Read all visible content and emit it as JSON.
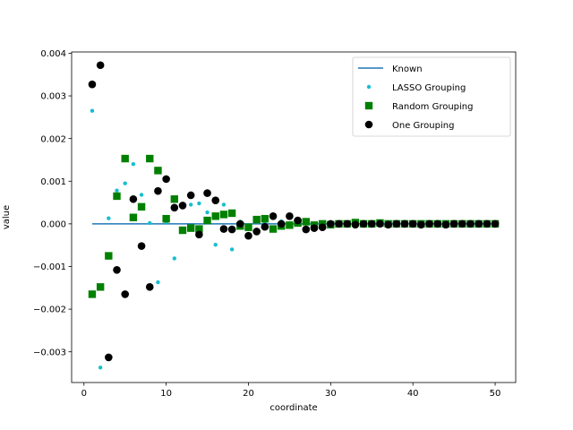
{
  "chart_data": {
    "type": "scatter",
    "title": "",
    "xlabel": "coordinate",
    "ylabel": "value",
    "xlim": [
      -1.5,
      52.5
    ],
    "ylim": [
      -0.00372,
      0.00403
    ],
    "xticks": [
      0,
      10,
      20,
      30,
      40,
      50
    ],
    "yticks": [
      -0.003,
      -0.002,
      -0.001,
      0.0,
      0.001,
      0.002,
      0.003,
      0.004
    ],
    "ytick_labels": [
      "−0.003",
      "−0.002",
      "−0.001",
      "0.000",
      "0.001",
      "0.002",
      "0.003",
      "0.004"
    ],
    "grid": false,
    "legend_position": "upper right",
    "series": [
      {
        "name": "Known",
        "marker": "line",
        "color": "#1f77b4",
        "x": [
          1,
          50
        ],
        "y": [
          0,
          0
        ]
      },
      {
        "name": "LASSO Grouping",
        "marker": "small-dot",
        "color": "#17becf",
        "x": [
          1,
          2,
          3,
          4,
          5,
          6,
          7,
          8,
          9,
          10,
          11,
          12,
          13,
          14,
          15,
          16,
          17,
          18,
          19,
          20,
          21,
          22,
          23,
          24,
          25,
          26,
          27,
          28,
          29,
          30,
          31,
          32,
          33,
          34,
          35,
          36,
          37,
          38,
          39,
          40,
          41,
          42,
          43,
          44,
          45,
          46,
          47,
          48,
          49,
          50
        ],
        "y": [
          0.00265,
          -0.00337,
          0.00013,
          0.00078,
          0.00095,
          0.0014,
          0.00068,
          2e-05,
          -0.00137,
          4e-05,
          -0.00081,
          0.00042,
          0.00045,
          0.00048,
          0.00027,
          -0.00049,
          0.00045,
          -0.0006,
          5e-05,
          -0.00012,
          8e-05,
          4e-05,
          0.00021,
          6e-05,
          1e-05,
          5e-05,
          1e-05,
          0.0,
          -2e-05,
          0.0,
          0.0,
          2e-05,
          1e-05,
          0.0,
          0.0,
          0.0,
          0.0,
          0.0,
          0.0,
          0.0,
          0.0,
          0.0,
          0.0,
          0.0,
          0.0,
          0.0,
          0.0,
          0.0,
          0.0,
          0.0
        ]
      },
      {
        "name": "Random Grouping",
        "marker": "square",
        "color": "#008000",
        "x": [
          1,
          2,
          3,
          4,
          5,
          6,
          7,
          8,
          9,
          10,
          11,
          12,
          13,
          14,
          15,
          16,
          17,
          18,
          19,
          20,
          21,
          22,
          23,
          24,
          25,
          26,
          27,
          28,
          29,
          30,
          31,
          32,
          33,
          34,
          35,
          36,
          37,
          38,
          39,
          40,
          41,
          42,
          43,
          44,
          45,
          46,
          47,
          48,
          49,
          50
        ],
        "y": [
          -0.00165,
          -0.00148,
          -0.00075,
          0.00065,
          0.00153,
          0.00015,
          0.0004,
          0.00153,
          0.00125,
          0.00012,
          0.00058,
          -0.00015,
          -0.0001,
          -0.00012,
          8e-05,
          0.00018,
          0.00022,
          0.00025,
          -5e-05,
          -8e-05,
          0.0001,
          0.00012,
          -0.00012,
          -5e-05,
          -3e-05,
          2e-05,
          5e-05,
          -3e-05,
          0.0,
          -2e-05,
          0.0,
          0.0,
          3e-05,
          0.0,
          0.0,
          2e-05,
          0.0,
          0.0,
          0.0,
          0.0,
          0.0,
          0.0,
          0.0,
          0.0,
          0.0,
          0.0,
          0.0,
          0.0,
          0.0,
          0.0
        ]
      },
      {
        "name": "One Grouping",
        "marker": "circle",
        "color": "#000000",
        "x": [
          1,
          2,
          3,
          4,
          5,
          6,
          7,
          8,
          9,
          10,
          11,
          12,
          13,
          14,
          15,
          16,
          17,
          18,
          19,
          20,
          21,
          22,
          23,
          24,
          25,
          26,
          27,
          28,
          29,
          30,
          31,
          32,
          33,
          34,
          35,
          36,
          37,
          38,
          39,
          40,
          41,
          42,
          43,
          44,
          45,
          46,
          47,
          48,
          49,
          50
        ],
        "y": [
          0.00327,
          0.00372,
          -0.00313,
          -0.00108,
          -0.00165,
          0.00058,
          -0.00052,
          -0.00148,
          0.00077,
          0.00105,
          0.00038,
          0.00043,
          0.00067,
          -0.00025,
          0.00072,
          0.00055,
          -0.00012,
          -0.00013,
          0.0,
          -0.00028,
          -0.00018,
          -7e-05,
          0.00018,
          0.0,
          0.00018,
          8e-05,
          -0.00013,
          -0.0001,
          -8e-05,
          0.0,
          0.0,
          0.0,
          -2e-05,
          0.0,
          0.0,
          0.0,
          -2e-05,
          0.0,
          0.0,
          0.0,
          -2e-05,
          0.0,
          0.0,
          -2e-05,
          0.0,
          0.0,
          0.0,
          0.0,
          0.0,
          0.0
        ]
      }
    ]
  }
}
